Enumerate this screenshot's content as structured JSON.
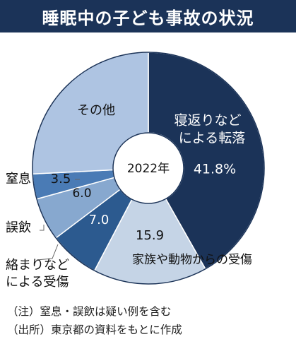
{
  "colors": {
    "title_bg": "#1b3358",
    "outline": "#1b3358",
    "connector": "#666666"
  },
  "chart_data": {
    "type": "pie",
    "style": "donut",
    "title": "睡眠中の子ども事故の状況",
    "center_label": "2022年",
    "unit": "%",
    "start": "12 o'clock, clockwise",
    "slices": [
      {
        "label_lines": [
          "寝返りなど",
          "による転落"
        ],
        "value": 41.8,
        "value_text": "41.8%",
        "color": "#1b3358"
      },
      {
        "label_lines": [
          "家族や動物からの受傷"
        ],
        "value": 15.9,
        "value_text": "15.9",
        "color": "#c5d4e6"
      },
      {
        "label_lines": [
          "絡まりなど",
          "による受傷"
        ],
        "value": 7.0,
        "value_text": "7.0",
        "color": "#2c5a8f"
      },
      {
        "label_lines": [
          "誤飲"
        ],
        "value": 6.0,
        "value_text": "6.0",
        "color": "#87a8cf"
      },
      {
        "label_lines": [
          "窒息"
        ],
        "value": 3.5,
        "value_text": "3.5",
        "color": "#4a7bb5"
      },
      {
        "label_lines": [
          "その他"
        ],
        "value": 25.8,
        "value_text": "",
        "color": "#aec4e2"
      }
    ]
  },
  "notes": [
    "（注）窒息・誤飲は疑い例を含む",
    "（出所）東京都の資料をもとに作成"
  ]
}
